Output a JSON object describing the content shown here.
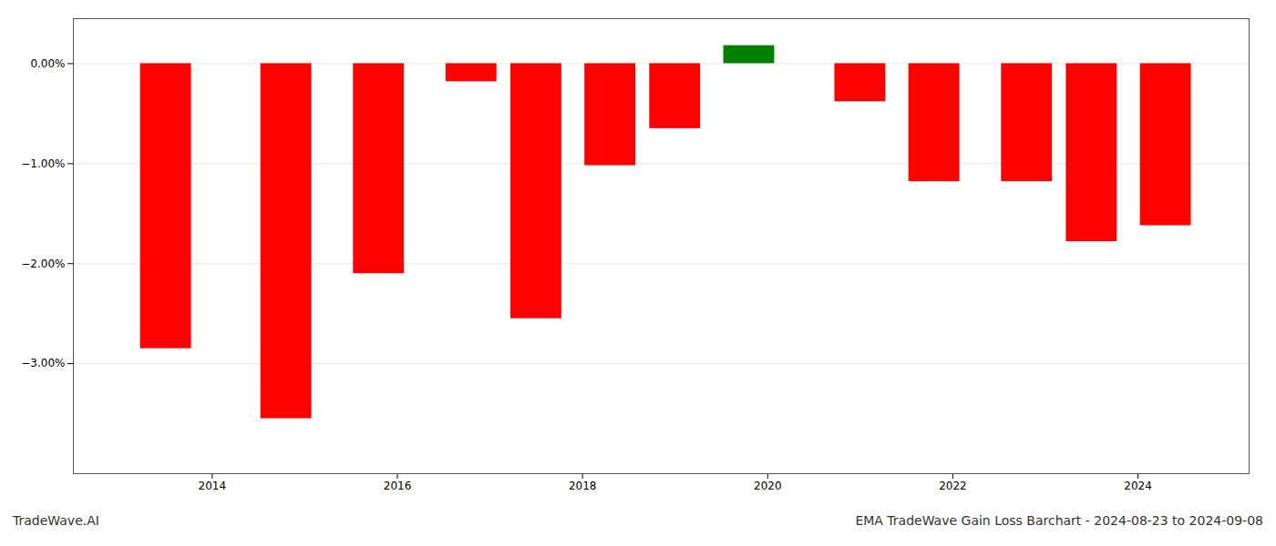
{
  "chart_data": {
    "type": "bar",
    "title": "EMA TradeWave Gain Loss Barchart - 2024-08-23 to 2024-09-08",
    "annotations": [
      "TradeWave.AI"
    ],
    "x": [
      2013.5,
      2014.8,
      2015.8,
      2016.8,
      2017.5,
      2018.3,
      2019.0,
      2019.8,
      2021.0,
      2021.8,
      2022.8,
      2023.5,
      2024.3
    ],
    "values": [
      -2.85,
      -3.55,
      -2.1,
      -0.18,
      -2.55,
      -1.02,
      -0.65,
      0.18,
      -0.38,
      -1.18,
      -1.18,
      -1.78,
      -1.62
    ],
    "colors": [
      "#ff0000",
      "#ff0000",
      "#ff0000",
      "#ff0000",
      "#ff0000",
      "#ff0000",
      "#ff0000",
      "#008000",
      "#ff0000",
      "#ff0000",
      "#ff0000",
      "#ff0000",
      "#ff0000"
    ],
    "xlim": [
      2012.5,
      2025.2
    ],
    "xticks": [
      2014,
      2016,
      2018,
      2020,
      2022,
      2024
    ],
    "ylim": [
      -4.1,
      0.45
    ],
    "yticks": [
      {
        "value": 0.0,
        "label": "0.00%"
      },
      {
        "value": -1.0,
        "label": "−1.00%"
      },
      {
        "value": -2.0,
        "label": "−2.00%"
      },
      {
        "value": -3.0,
        "label": "−3.00%"
      }
    ],
    "grid": true
  }
}
